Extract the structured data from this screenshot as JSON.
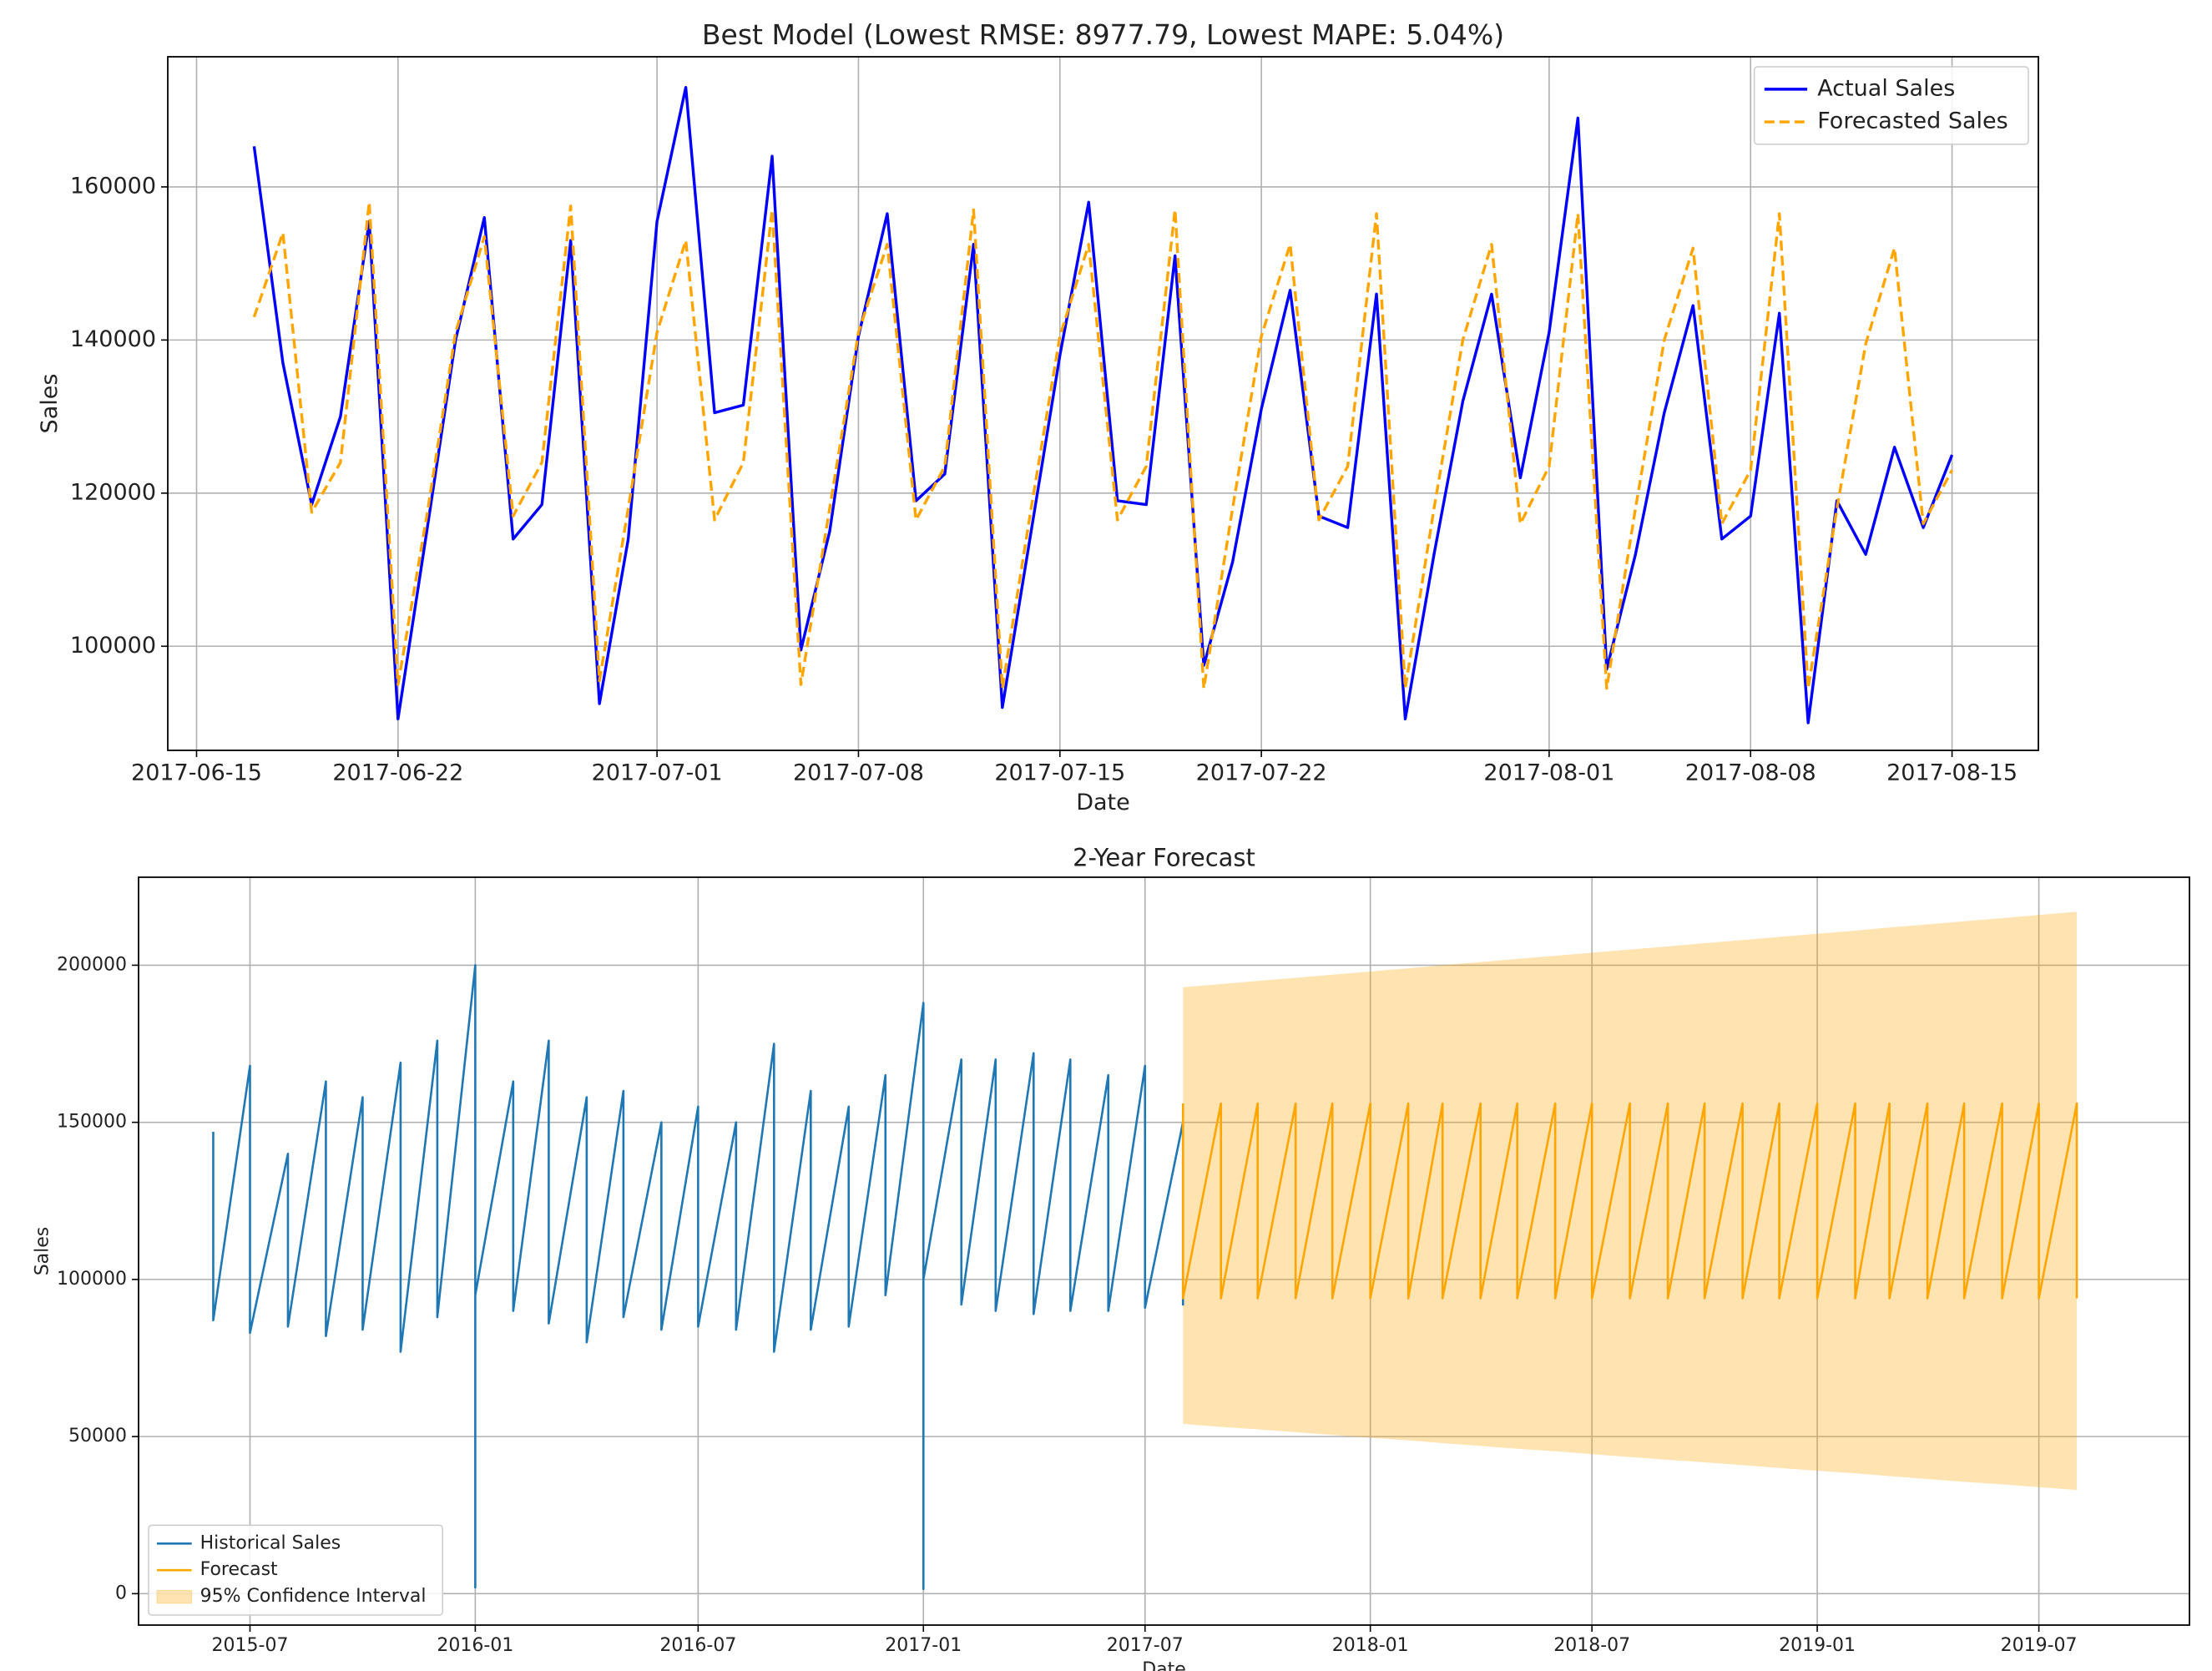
{
  "chart_data": [
    {
      "type": "line",
      "title": "Best Model (Lowest RMSE: 8977.79, Lowest MAPE: 5.04%)",
      "x_label": "Date",
      "y_label": "Sales",
      "x": [
        "2017-06-17",
        "2017-06-18",
        "2017-06-19",
        "2017-06-20",
        "2017-06-21",
        "2017-06-22",
        "2017-06-23",
        "2017-06-24",
        "2017-06-25",
        "2017-06-26",
        "2017-06-27",
        "2017-06-28",
        "2017-06-29",
        "2017-06-30",
        "2017-07-01",
        "2017-07-02",
        "2017-07-03",
        "2017-07-04",
        "2017-07-05",
        "2017-07-06",
        "2017-07-07",
        "2017-07-08",
        "2017-07-09",
        "2017-07-10",
        "2017-07-11",
        "2017-07-12",
        "2017-07-13",
        "2017-07-14",
        "2017-07-15",
        "2017-07-16",
        "2017-07-17",
        "2017-07-18",
        "2017-07-19",
        "2017-07-20",
        "2017-07-21",
        "2017-07-22",
        "2017-07-23",
        "2017-07-24",
        "2017-07-25",
        "2017-07-26",
        "2017-07-27",
        "2017-07-28",
        "2017-07-29",
        "2017-07-30",
        "2017-07-31",
        "2017-08-01",
        "2017-08-02",
        "2017-08-03",
        "2017-08-04",
        "2017-08-05",
        "2017-08-06",
        "2017-08-07",
        "2017-08-08",
        "2017-08-09",
        "2017-08-10",
        "2017-08-11",
        "2017-08-12",
        "2017-08-13",
        "2017-08-14",
        "2017-08-15"
      ],
      "series": [
        {
          "name": "Actual Sales",
          "color": "#0000ff",
          "linestyle": "solid",
          "values": [
            165300,
            137000,
            118500,
            130000,
            155500,
            90500,
            115000,
            140000,
            156000,
            114000,
            118500,
            153000,
            92500,
            114000,
            155500,
            173000,
            130500,
            131500,
            164000,
            99500,
            115000,
            140500,
            156500,
            119000,
            122500,
            152500,
            92000,
            115000,
            138000,
            158000,
            119000,
            118500,
            151000,
            97500,
            111000,
            131000,
            146500,
            117000,
            115500,
            146000,
            90500,
            112000,
            132000,
            146000,
            122000,
            141000,
            169000,
            97000,
            112000,
            130500,
            144500,
            114000,
            117000,
            143500,
            90000,
            119000,
            112000,
            126000,
            115500,
            125000
          ]
        },
        {
          "name": "Forecasted Sales",
          "color": "#ffa500",
          "linestyle": "dashed",
          "values": [
            143000,
            154000,
            117500,
            124000,
            158000,
            95000,
            117000,
            141000,
            153500,
            117000,
            124000,
            157500,
            95500,
            118000,
            141000,
            153000,
            116500,
            124000,
            157000,
            95000,
            118000,
            141000,
            152500,
            116500,
            123500,
            157000,
            94500,
            118000,
            140500,
            152500,
            116500,
            123500,
            157000,
            94500,
            118000,
            140500,
            152500,
            116500,
            123500,
            156500,
            94500,
            118000,
            140000,
            152500,
            116000,
            123500,
            156500,
            94500,
            118000,
            140000,
            152000,
            116000,
            123000,
            156500,
            94500,
            118000,
            139500,
            152000,
            116000,
            123000
          ]
        }
      ],
      "xlim": [
        "2017-06-14",
        "2017-08-18"
      ],
      "xticks": [
        "2017-06-15",
        "2017-06-22",
        "2017-07-01",
        "2017-07-08",
        "2017-07-15",
        "2017-07-22",
        "2017-08-01",
        "2017-08-08",
        "2017-08-15"
      ],
      "ylim": [
        86400,
        177000
      ],
      "yticks": [
        100000,
        120000,
        140000,
        160000
      ],
      "grid": true,
      "legend": "upper right"
    },
    {
      "type": "line",
      "title": "2-Year Forecast",
      "x_label": "Date",
      "y_label": "Sales",
      "series": [
        {
          "name": "Historical Sales",
          "color": "#1f77b4",
          "linestyle": "solid",
          "x": [
            "2015-06",
            "2015-06",
            "2015-07",
            "2015-07",
            "2015-08",
            "2015-08",
            "2015-09",
            "2015-09",
            "2015-10",
            "2015-10",
            "2015-11",
            "2015-11",
            "2015-12",
            "2015-12",
            "2016-01",
            "2016-01",
            "2016-01",
            "2016-01",
            "2016-02",
            "2016-02",
            "2016-03",
            "2016-03",
            "2016-04",
            "2016-04",
            "2016-05",
            "2016-05",
            "2016-06",
            "2016-06",
            "2016-07",
            "2016-07",
            "2016-08",
            "2016-08",
            "2016-09",
            "2016-09",
            "2016-10",
            "2016-10",
            "2016-11",
            "2016-11",
            "2016-12",
            "2016-12",
            "2017-01",
            "2017-01",
            "2017-01",
            "2017-01",
            "2017-02",
            "2017-02",
            "2017-03",
            "2017-03",
            "2017-04",
            "2017-04",
            "2017-05",
            "2017-05",
            "2017-06",
            "2017-06",
            "2017-07",
            "2017-07",
            "2017-08",
            "2017-08",
            "2017-08"
          ],
          "values": [
            147000,
            87000,
            168000,
            83000,
            140000,
            85000,
            163000,
            82000,
            158000,
            84000,
            169000,
            77000,
            176000,
            88000,
            200000,
            2000,
            183000,
            95000,
            163000,
            90000,
            176000,
            86000,
            158000,
            80000,
            160000,
            88000,
            150000,
            84000,
            155000,
            85000,
            150000,
            84000,
            175000,
            77000,
            160000,
            84000,
            155000,
            85000,
            165000,
            95000,
            188000,
            1500,
            187000,
            100000,
            170000,
            92000,
            170000,
            90000,
            172000,
            89000,
            170000,
            90000,
            165000,
            90000,
            168000,
            91000,
            150000,
            92000,
            126000
          ]
        },
        {
          "name": "Forecast",
          "color": "#ffa500",
          "linestyle": "solid",
          "x": [
            "2017-08",
            "2017-08",
            "2017-09",
            "2017-09",
            "2017-10",
            "2017-10",
            "2017-11",
            "2017-11",
            "2017-12",
            "2017-12",
            "2018-01",
            "2018-01",
            "2018-02",
            "2018-02",
            "2018-03",
            "2018-03",
            "2018-04",
            "2018-04",
            "2018-05",
            "2018-05",
            "2018-06",
            "2018-06",
            "2018-07",
            "2018-07",
            "2018-08",
            "2018-08",
            "2018-09",
            "2018-09",
            "2018-10",
            "2018-10",
            "2018-11",
            "2018-11",
            "2018-12",
            "2018-12",
            "2019-01",
            "2019-01",
            "2019-02",
            "2019-02",
            "2019-03",
            "2019-03",
            "2019-04",
            "2019-04",
            "2019-05",
            "2019-05",
            "2019-06",
            "2019-06",
            "2019-07",
            "2019-07",
            "2019-08",
            "2019-08"
          ],
          "values": [
            156000,
            94000,
            156000,
            94000,
            156000,
            94000,
            156000,
            94000,
            156000,
            94000,
            156000,
            94000,
            156000,
            94000,
            156000,
            94000,
            156000,
            94000,
            156000,
            94000,
            156000,
            94000,
            156000,
            94000,
            156000,
            94000,
            156000,
            94000,
            156000,
            94000,
            156000,
            94000,
            156000,
            94000,
            156000,
            94000,
            156000,
            94000,
            156000,
            94000,
            156000,
            94000,
            156000,
            94000,
            156000,
            94000,
            156000,
            94000,
            156000,
            94000
          ]
        }
      ],
      "band": {
        "name": "95% Confidence Interval",
        "color": "#ffa500",
        "opacity": 0.3,
        "x": [
          "2017-08",
          "2017-09",
          "2017-10",
          "2017-11",
          "2017-12",
          "2018-01",
          "2018-02",
          "2018-03",
          "2018-04",
          "2018-05",
          "2018-06",
          "2018-07",
          "2018-08",
          "2018-09",
          "2018-10",
          "2018-11",
          "2018-12",
          "2019-01",
          "2019-02",
          "2019-03",
          "2019-04",
          "2019-05",
          "2019-06",
          "2019-07",
          "2019-08"
        ],
        "lower": [
          54000,
          53100,
          52300,
          51400,
          50500,
          49600,
          48800,
          47900,
          47000,
          46100,
          45300,
          44400,
          43500,
          42600,
          41800,
          40900,
          40000,
          39100,
          38300,
          37400,
          36500,
          35600,
          34800,
          33900,
          33000
        ],
        "upper": [
          193000,
          194000,
          195000,
          196000,
          197000,
          198000,
          199000,
          200000,
          201000,
          202000,
          203000,
          204000,
          205000,
          206000,
          207000,
          208000,
          209000,
          210000,
          211000,
          212000,
          213000,
          214000,
          215000,
          216000,
          217000
        ]
      },
      "xlim": [
        "2015-04",
        "2019-11"
      ],
      "xticks": [
        "2015-07",
        "2016-01",
        "2016-07",
        "2017-01",
        "2017-07",
        "2018-01",
        "2018-07",
        "2019-01",
        "2019-07"
      ],
      "ylim": [
        -10000,
        228000
      ],
      "yticks": [
        0,
        50000,
        100000,
        150000,
        200000
      ],
      "grid": true,
      "legend": "lower left"
    }
  ]
}
